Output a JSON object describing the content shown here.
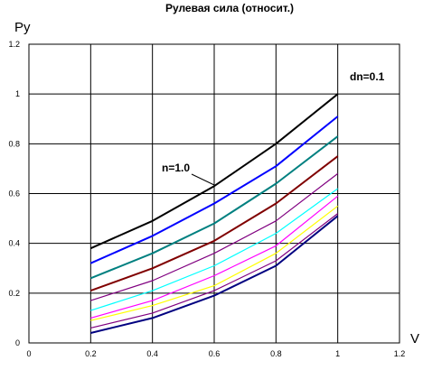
{
  "chart_data": {
    "type": "line",
    "title": "Рулевая сила (относит.)",
    "ylabel": "Py",
    "xlabel": "V",
    "xlim": [
      0,
      1.2
    ],
    "ylim": [
      0,
      1.2
    ],
    "x_ticks": [
      "0",
      "0.2",
      "0.4",
      "0.6",
      "0.8",
      "1",
      "1.2"
    ],
    "y_ticks": [
      "0",
      "0.2",
      "0.4",
      "0.6",
      "0.8",
      "1",
      "1.2"
    ],
    "grid": true,
    "annotations": [
      {
        "text": "n=1.0",
        "x": 0.57,
        "y": 0.69
      },
      {
        "text": "dn=0.1",
        "x": 1.06,
        "y": 1.06
      }
    ],
    "x": [
      0.2,
      0.4,
      0.6,
      0.8,
      1.0
    ],
    "series": [
      {
        "color": "#000000",
        "values": [
          0.38,
          0.49,
          0.63,
          0.8,
          1.0
        ]
      },
      {
        "color": "#0000ff",
        "values": [
          0.32,
          0.43,
          0.56,
          0.71,
          0.91
        ]
      },
      {
        "color": "#008080",
        "values": [
          0.26,
          0.36,
          0.48,
          0.64,
          0.83
        ]
      },
      {
        "color": "#800000",
        "values": [
          0.21,
          0.3,
          0.41,
          0.56,
          0.75
        ]
      },
      {
        "color": "#800080",
        "values": [
          0.17,
          0.25,
          0.36,
          0.49,
          0.68
        ]
      },
      {
        "color": "#00ffff",
        "values": [
          0.13,
          0.21,
          0.31,
          0.44,
          0.62
        ]
      },
      {
        "color": "#ff00ff",
        "values": [
          0.1,
          0.17,
          0.27,
          0.39,
          0.59
        ]
      },
      {
        "color": "#ffff00",
        "values": [
          0.09,
          0.15,
          0.23,
          0.36,
          0.55
        ]
      },
      {
        "color": "#800080",
        "values": [
          0.06,
          0.12,
          0.21,
          0.33,
          0.52
        ]
      },
      {
        "color": "#000080",
        "values": [
          0.04,
          0.1,
          0.19,
          0.31,
          0.51
        ]
      }
    ]
  }
}
